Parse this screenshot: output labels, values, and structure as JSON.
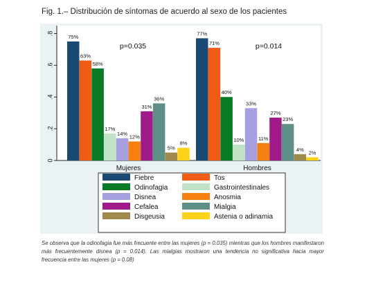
{
  "figure": {
    "title": "Fig. 1.– Distribución de síntomas de acuerdo al sexo de los pacientes",
    "caption": "Se observa que la odinofagia fue más frecuente entre las mujeres (p = 0.035) mientras que los hombres manifestaron más frecuentemente disnea (p = 0.014). Las mialgias mostraron una tendencia no significativa hacia mayor frecuencia entre las mujeres (p = 0.08)"
  },
  "chart_data": {
    "type": "bar",
    "categories": [
      "Mujeres",
      "Hombres"
    ],
    "ylim": [
      0,
      0.85
    ],
    "yticks": [
      0,
      0.2,
      0.4,
      0.6,
      0.8
    ],
    "ytick_labels": [
      "0",
      ".2",
      ".4",
      ".6",
      ".8"
    ],
    "p_values": [
      "p=0.035",
      "p=0.014"
    ],
    "grid": false,
    "legend_position": "bottom",
    "series": [
      {
        "name": "Fiebre",
        "color": "#1a4a73",
        "values": [
          0.75,
          0.77
        ],
        "labels": [
          "75%",
          "77%"
        ]
      },
      {
        "name": "Tos",
        "color": "#f05b16",
        "values": [
          0.63,
          0.71
        ],
        "labels": [
          "63%",
          "71%"
        ]
      },
      {
        "name": "Odinofagia",
        "color": "#0b7a26",
        "values": [
          0.58,
          0.4
        ],
        "labels": [
          "58%",
          "40%"
        ]
      },
      {
        "name": "Gastrointestinales",
        "color": "#bfe3c4",
        "values": [
          0.17,
          0.1
        ],
        "labels": [
          "17%",
          "10%"
        ]
      },
      {
        "name": "Disnea",
        "color": "#a59fe0",
        "values": [
          0.14,
          0.33
        ],
        "labels": [
          "14%",
          "33%"
        ]
      },
      {
        "name": "Anosmia",
        "color": "#f5800f",
        "values": [
          0.12,
          0.11
        ],
        "labels": [
          "12%",
          "11%"
        ]
      },
      {
        "name": "Cefalea",
        "color": "#a01a8a",
        "values": [
          0.31,
          0.27
        ],
        "labels": [
          "31%",
          "27%"
        ]
      },
      {
        "name": "Mialgia",
        "color": "#5d8f86",
        "values": [
          0.36,
          0.23
        ],
        "labels": [
          "36%",
          "23%"
        ]
      },
      {
        "name": "Disgeusia",
        "color": "#a08a4e",
        "values": [
          0.05,
          0.04
        ],
        "labels": [
          "5%",
          "4%"
        ]
      },
      {
        "name": "Astenia o adinamia",
        "color": "#ffd21a",
        "values": [
          0.08,
          0.02
        ],
        "labels": [
          "8%",
          "2%"
        ]
      }
    ]
  }
}
